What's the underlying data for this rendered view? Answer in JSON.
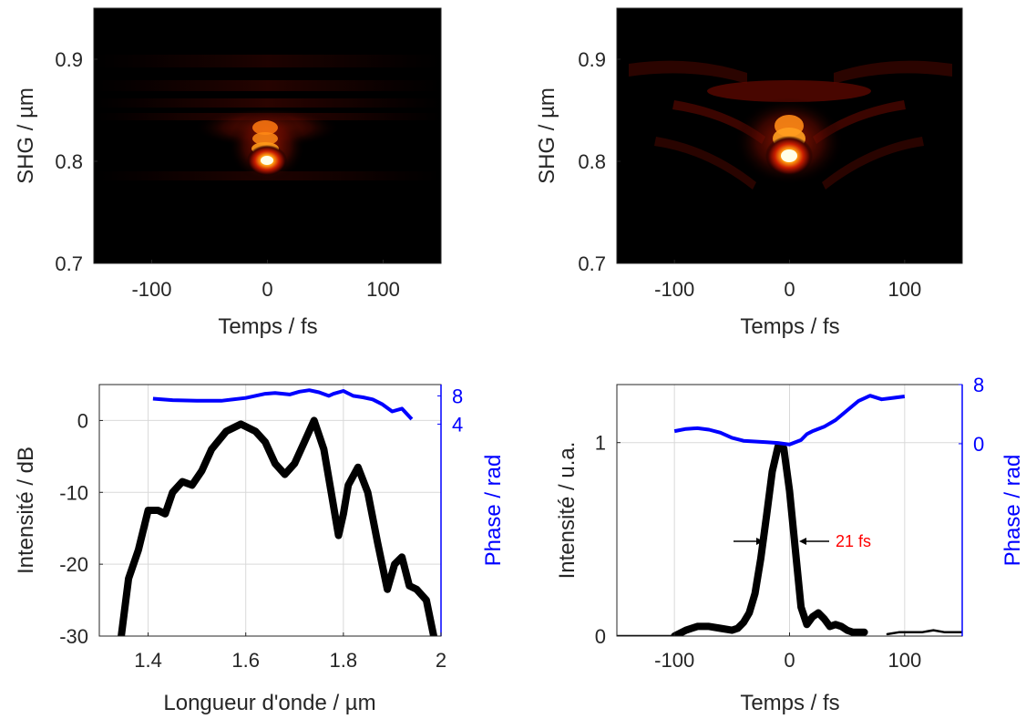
{
  "chart_data": [
    {
      "type": "heatmap",
      "xlabel": "Temps / fs",
      "ylabel": "SHG / µm",
      "xlim": [
        -150,
        150
      ],
      "ylim": [
        0.7,
        0.95
      ],
      "xticks": [
        -100,
        0,
        100
      ],
      "yticks": [
        0.7,
        0.8,
        0.9
      ],
      "xtick_labels": [
        "-100",
        "0",
        "100"
      ],
      "ytick_labels": [
        "0.7",
        "0.8",
        "0.9"
      ],
      "colormap": "hot",
      "peak": {
        "x": 0,
        "y": 0.8
      }
    },
    {
      "type": "heatmap",
      "xlabel": "Temps / fs",
      "ylabel": "SHG / µm",
      "xlim": [
        -150,
        150
      ],
      "ylim": [
        0.7,
        0.95
      ],
      "xticks": [
        -100,
        0,
        100
      ],
      "yticks": [
        0.7,
        0.8,
        0.9
      ],
      "xtick_labels": [
        "-100",
        "0",
        "100"
      ],
      "ytick_labels": [
        "0.7",
        "0.8",
        "0.9"
      ],
      "colormap": "hot",
      "peak": {
        "x": 0,
        "y": 0.8
      }
    },
    {
      "type": "line",
      "xlabel": "Longueur d'onde / µm",
      "ylabel": "Intensité / dB",
      "ylabel_right": "Phase / rad",
      "xlim": [
        1.3,
        2.0
      ],
      "ylim": [
        -30,
        5
      ],
      "ylim_right": [
        -26,
        9.6
      ],
      "xticks": [
        1.4,
        1.6,
        1.8,
        2.0
      ],
      "xtick_labels": [
        "1.4",
        "1.6",
        "1.8",
        "2"
      ],
      "yticks": [
        -30,
        -20,
        -10,
        0
      ],
      "ytick_labels": [
        "-30",
        "-20",
        "-10",
        "0"
      ],
      "yticks_right": [
        4,
        8
      ],
      "ytick_labels_right": [
        "4",
        "8"
      ],
      "grid": true,
      "series": [
        {
          "axis": "left",
          "color": "#000000",
          "x": [
            1.345,
            1.36,
            1.38,
            1.4,
            1.42,
            1.435,
            1.45,
            1.47,
            1.49,
            1.51,
            1.53,
            1.56,
            1.59,
            1.62,
            1.64,
            1.66,
            1.68,
            1.7,
            1.72,
            1.74,
            1.76,
            1.775,
            1.79,
            1.8,
            1.81,
            1.83,
            1.85,
            1.87,
            1.89,
            1.905,
            1.92,
            1.935,
            1.95,
            1.97,
            1.985
          ],
          "y": [
            -30,
            -22,
            -18,
            -12.5,
            -12.5,
            -13,
            -10,
            -8.5,
            -9,
            -7,
            -4,
            -1.5,
            -0.5,
            -1.5,
            -3,
            -6,
            -7.5,
            -6,
            -3,
            0,
            -4,
            -10,
            -16,
            -13,
            -9,
            -6.5,
            -10,
            -17,
            -23.5,
            -20,
            -19,
            -23,
            -23.5,
            -25,
            -30
          ]
        },
        {
          "axis": "right",
          "color": "#0000ff",
          "x": [
            1.41,
            1.45,
            1.5,
            1.55,
            1.6,
            1.64,
            1.66,
            1.69,
            1.71,
            1.73,
            1.75,
            1.77,
            1.78,
            1.8,
            1.82,
            1.84,
            1.86,
            1.88,
            1.9,
            1.92,
            1.94
          ],
          "y": [
            7.6,
            7.4,
            7.3,
            7.3,
            7.7,
            8.3,
            8.4,
            8.2,
            8.6,
            8.8,
            8.5,
            8.0,
            8.3,
            8.7,
            8.0,
            7.8,
            7.5,
            6.8,
            5.8,
            6.2,
            4.7
          ]
        }
      ]
    },
    {
      "type": "line",
      "xlabel": "Temps / fs",
      "ylabel": "Intensité / u.a.",
      "ylabel_right": "Phase / rad",
      "xlim": [
        -150,
        150
      ],
      "ylim": [
        0,
        1.3
      ],
      "ylim_right": [
        -26,
        8
      ],
      "xticks": [
        -100,
        0,
        100
      ],
      "xtick_labels": [
        "-100",
        "0",
        "100"
      ],
      "yticks": [
        0,
        1
      ],
      "ytick_labels": [
        "0",
        "1"
      ],
      "yticks_right": [
        0,
        8
      ],
      "ytick_labels_right": [
        "0",
        "8"
      ],
      "grid": true,
      "annotation": {
        "text": "21 fs",
        "y": 0.5,
        "x_left": -15,
        "x_right": 8
      },
      "series": [
        {
          "axis": "left",
          "color": "#000000",
          "segments": [
            {
              "x": [
                -150,
                -100
              ],
              "y": [
                0,
                0
              ]
            },
            {
              "x": [
                -100,
                -90,
                -80,
                -70,
                -60,
                -50,
                -45,
                -40,
                -35,
                -30,
                -25,
                -20,
                -15,
                -10,
                -5,
                0,
                5,
                10,
                15,
                20,
                25,
                30,
                35,
                40,
                45,
                50,
                55,
                60,
                65
              ],
              "y": [
                0,
                0.03,
                0.05,
                0.05,
                0.04,
                0.03,
                0.04,
                0.07,
                0.12,
                0.22,
                0.4,
                0.62,
                0.85,
                0.98,
                0.97,
                0.75,
                0.45,
                0.15,
                0.06,
                0.1,
                0.12,
                0.09,
                0.05,
                0.06,
                0.05,
                0.03,
                0.02,
                0.02,
                0.02
              ]
            },
            {
              "x": [
                85,
                95,
                105,
                115,
                125,
                135,
                145,
                150
              ],
              "y": [
                0.01,
                0.02,
                0.02,
                0.02,
                0.03,
                0.02,
                0.02,
                0.02
              ]
            }
          ]
        },
        {
          "axis": "right",
          "color": "#0000ff",
          "x": [
            -100,
            -90,
            -80,
            -70,
            -60,
            -50,
            -40,
            -30,
            -20,
            -10,
            0,
            10,
            15,
            20,
            30,
            40,
            50,
            60,
            70,
            80,
            90,
            100
          ],
          "y": [
            1.7,
            2.0,
            2.1,
            1.9,
            1.5,
            0.8,
            0.4,
            0.3,
            0.2,
            0.1,
            -0.1,
            0.5,
            1.3,
            1.7,
            2.3,
            3.2,
            4.5,
            5.8,
            6.5,
            6.0,
            6.2,
            6.4
          ]
        }
      ]
    }
  ]
}
